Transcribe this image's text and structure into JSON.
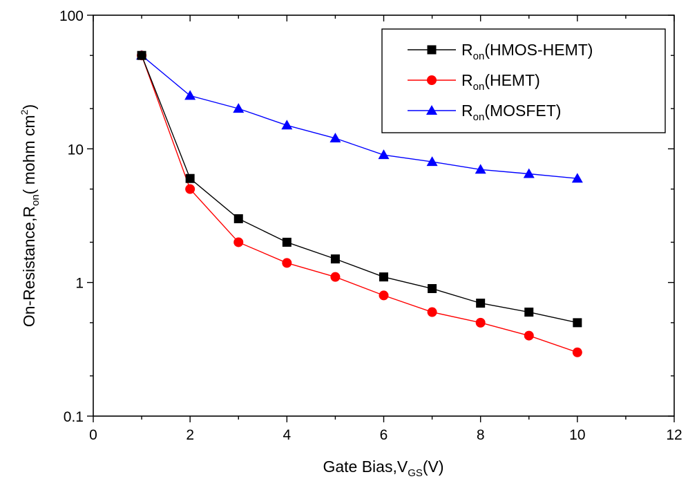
{
  "chart_data": {
    "type": "line",
    "xlabel": {
      "main": "Gate Bias,V",
      "sub": "GS",
      "suffix": "(V)"
    },
    "ylabel": {
      "main": "On-Resistance,R",
      "sub": "on",
      "suffix_pre": "( mohm cm",
      "sup": "2",
      "suffix_post": ")"
    },
    "xlim": [
      0,
      12
    ],
    "ylim": [
      0.1,
      100
    ],
    "yscale": "log",
    "xticks": [
      "0",
      "2",
      "4",
      "6",
      "8",
      "10",
      "12"
    ],
    "yticks": [
      "0.1",
      "1",
      "10",
      "100"
    ],
    "legend_position": "top-right",
    "series": [
      {
        "name_main": "R",
        "name_sub": "on",
        "name_suffix": "(HMOS-HEMT)",
        "color": "#000000",
        "marker": "square",
        "x": [
          1,
          2,
          3,
          4,
          5,
          6,
          7,
          8,
          9,
          10
        ],
        "y": [
          50,
          6,
          3,
          2,
          1.5,
          1.1,
          0.9,
          0.7,
          0.6,
          0.5
        ]
      },
      {
        "name_main": "R",
        "name_sub": "on",
        "name_suffix": "(HEMT)",
        "color": "#ff0000",
        "marker": "circle",
        "x": [
          1,
          2,
          3,
          4,
          5,
          6,
          7,
          8,
          9,
          10
        ],
        "y": [
          50,
          5,
          2,
          1.4,
          1.1,
          0.8,
          0.6,
          0.5,
          0.4,
          0.3
        ]
      },
      {
        "name_main": "R",
        "name_sub": "on",
        "name_suffix": "(MOSFET)",
        "color": "#0000ff",
        "marker": "triangle",
        "x": [
          1,
          2,
          3,
          4,
          5,
          6,
          7,
          8,
          9,
          10
        ],
        "y": [
          50,
          25,
          20,
          15,
          12,
          9,
          8,
          7,
          6.5,
          6
        ]
      }
    ]
  }
}
